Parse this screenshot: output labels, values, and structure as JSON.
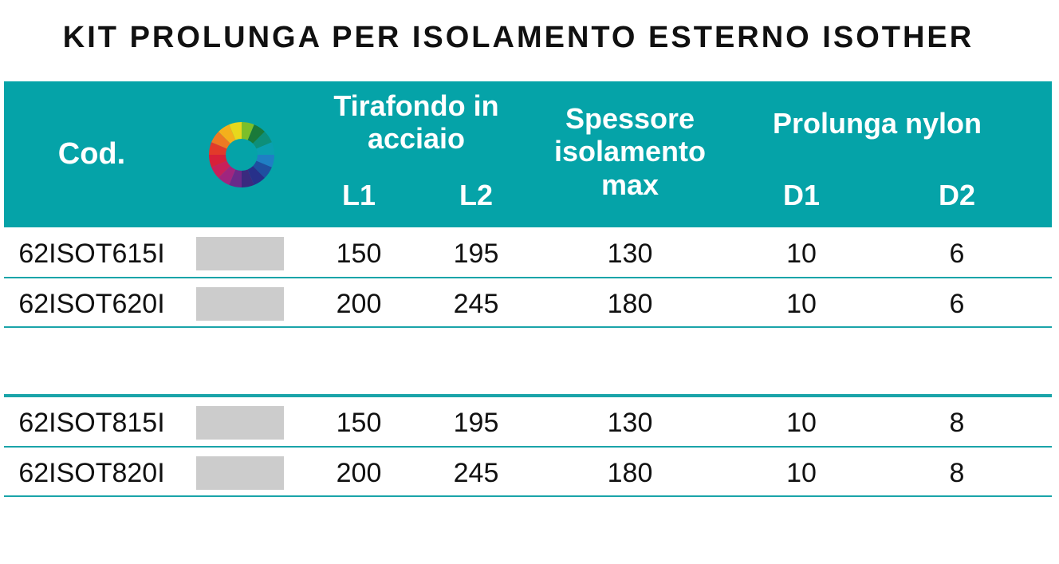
{
  "title": "KIT PROLUNGA PER ISOLAMENTO ESTERNO ISOTHER",
  "colors": {
    "header_bg": "#05a3a8",
    "row_line": "#1aa4a9",
    "swatch": "#cccccc"
  },
  "header": {
    "cod": "Cod.",
    "tirafondo": "Tirafondo in acciaio",
    "l1": "L1",
    "l2": "L2",
    "spessore": "Spessore isolamento max",
    "nylon": "Prolunga nylon",
    "d1": "D1",
    "d2": "D2",
    "icon": "color-wheel-icon"
  },
  "rows": [
    {
      "code": "62ISOT615I",
      "l1": "150",
      "l2": "195",
      "spessore": "130",
      "d1": "10",
      "d2": "6"
    },
    {
      "code": "62ISOT620I",
      "l1": "200",
      "l2": "245",
      "spessore": "180",
      "d1": "10",
      "d2": "6"
    },
    {
      "code": "62ISOT815I",
      "l1": "150",
      "l2": "195",
      "spessore": "130",
      "d1": "10",
      "d2": "8"
    },
    {
      "code": "62ISOT820I",
      "l1": "200",
      "l2": "245",
      "spessore": "180",
      "d1": "10",
      "d2": "8"
    }
  ]
}
